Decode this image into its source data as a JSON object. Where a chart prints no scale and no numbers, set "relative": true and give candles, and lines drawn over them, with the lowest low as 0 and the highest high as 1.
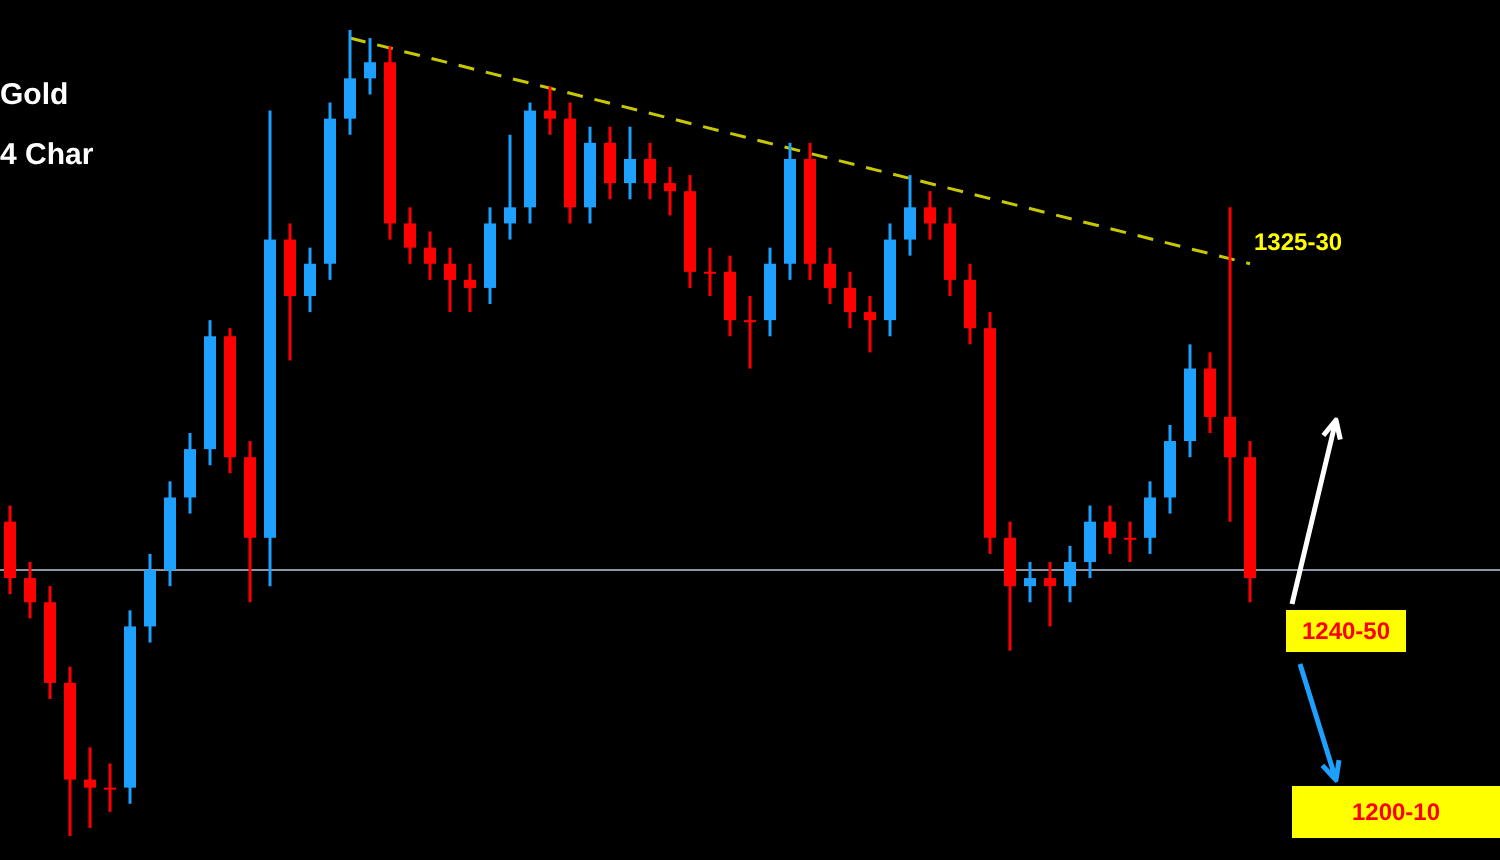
{
  "chart_data": {
    "type": "candlestick",
    "title": "Gold",
    "subtitle": "4 Char",
    "relative": true,
    "categories": [
      null,
      null,
      null,
      null,
      null,
      null,
      null,
      null,
      null,
      null,
      null,
      null,
      null,
      null,
      null,
      null,
      null,
      null,
      null,
      null,
      null,
      null,
      null,
      null,
      null,
      null,
      null,
      null,
      null,
      null,
      null,
      null,
      null,
      null,
      null,
      null,
      null,
      null,
      null,
      null,
      null,
      null,
      null,
      null,
      null,
      null,
      null,
      null,
      null,
      null,
      null,
      null,
      null,
      null,
      null,
      null,
      null,
      null,
      null,
      null,
      null,
      null,
      null
    ],
    "ohlc": [
      [
        0.39,
        0.41,
        0.3,
        0.32
      ],
      [
        0.32,
        0.34,
        0.27,
        0.29
      ],
      [
        0.29,
        0.31,
        0.17,
        0.19
      ],
      [
        0.19,
        0.21,
        0,
        0.07
      ],
      [
        0.07,
        0.11,
        0.01,
        0.06
      ],
      [
        0.06,
        0.09,
        0.03,
        0.06
      ],
      [
        0.06,
        0.28,
        0.04,
        0.26
      ],
      [
        0.26,
        0.35,
        0.24,
        0.33
      ],
      [
        0.33,
        0.44,
        0.31,
        0.42
      ],
      [
        0.42,
        0.5,
        0.4,
        0.48
      ],
      [
        0.48,
        0.64,
        0.46,
        0.62
      ],
      [
        0.62,
        0.63,
        0.45,
        0.47
      ],
      [
        0.47,
        0.49,
        0.29,
        0.37
      ],
      [
        0.37,
        0.9,
        0.31,
        0.74
      ],
      [
        0.74,
        0.76,
        0.59,
        0.67
      ],
      [
        0.67,
        0.73,
        0.65,
        0.71
      ],
      [
        0.71,
        0.91,
        0.69,
        0.89
      ],
      [
        0.89,
        1,
        0.87,
        0.94
      ],
      [
        0.94,
        0.99,
        0.92,
        0.96
      ],
      [
        0.96,
        0.98,
        0.74,
        0.76
      ],
      [
        0.76,
        0.78,
        0.71,
        0.73
      ],
      [
        0.73,
        0.75,
        0.69,
        0.71
      ],
      [
        0.71,
        0.73,
        0.65,
        0.69
      ],
      [
        0.69,
        0.71,
        0.65,
        0.68
      ],
      [
        0.68,
        0.78,
        0.66,
        0.76
      ],
      [
        0.76,
        0.87,
        0.74,
        0.78
      ],
      [
        0.78,
        0.91,
        0.76,
        0.9
      ],
      [
        0.9,
        0.93,
        0.87,
        0.89
      ],
      [
        0.89,
        0.91,
        0.76,
        0.78
      ],
      [
        0.78,
        0.88,
        0.76,
        0.86
      ],
      [
        0.86,
        0.88,
        0.79,
        0.81
      ],
      [
        0.81,
        0.88,
        0.79,
        0.84
      ],
      [
        0.84,
        0.86,
        0.79,
        0.81
      ],
      [
        0.81,
        0.83,
        0.77,
        0.8
      ],
      [
        0.8,
        0.82,
        0.68,
        0.7
      ],
      [
        0.7,
        0.73,
        0.67,
        0.7
      ],
      [
        0.7,
        0.72,
        0.62,
        0.64
      ],
      [
        0.64,
        0.67,
        0.58,
        0.64
      ],
      [
        0.64,
        0.73,
        0.62,
        0.71
      ],
      [
        0.71,
        0.86,
        0.69,
        0.84
      ],
      [
        0.84,
        0.86,
        0.69,
        0.71
      ],
      [
        0.71,
        0.73,
        0.66,
        0.68
      ],
      [
        0.68,
        0.7,
        0.63,
        0.65
      ],
      [
        0.65,
        0.67,
        0.6,
        0.64
      ],
      [
        0.64,
        0.76,
        0.62,
        0.74
      ],
      [
        0.74,
        0.82,
        0.72,
        0.78
      ],
      [
        0.78,
        0.8,
        0.74,
        0.76
      ],
      [
        0.76,
        0.78,
        0.67,
        0.69
      ],
      [
        0.69,
        0.71,
        0.61,
        0.63
      ],
      [
        0.63,
        0.65,
        0.35,
        0.37
      ],
      [
        0.37,
        0.39,
        0.23,
        0.31
      ],
      [
        0.31,
        0.34,
        0.29,
        0.32
      ],
      [
        0.32,
        0.34,
        0.26,
        0.31
      ],
      [
        0.31,
        0.36,
        0.29,
        0.34
      ],
      [
        0.34,
        0.41,
        0.32,
        0.39
      ],
      [
        0.39,
        0.41,
        0.35,
        0.37
      ],
      [
        0.37,
        0.39,
        0.34,
        0.37
      ],
      [
        0.37,
        0.44,
        0.35,
        0.42
      ],
      [
        0.42,
        0.51,
        0.4,
        0.49
      ],
      [
        0.49,
        0.61,
        0.47,
        0.58
      ],
      [
        0.58,
        0.6,
        0.5,
        0.52
      ],
      [
        0.52,
        0.78,
        0.39,
        0.47
      ],
      [
        0.47,
        0.49,
        0.29,
        0.32
      ]
    ],
    "colors": [
      "#ff0000",
      "#ff0000",
      "#ff0000",
      "#ff0000",
      "#ff0000",
      "#ff0000",
      "#1ea0ff",
      "#1ea0ff",
      "#1ea0ff",
      "#1ea0ff",
      "#1ea0ff",
      "#ff0000",
      "#ff0000",
      "#1ea0ff",
      "#ff0000",
      "#1ea0ff",
      "#1ea0ff",
      "#1ea0ff",
      "#1ea0ff",
      "#ff0000",
      "#ff0000",
      "#ff0000",
      "#ff0000",
      "#ff0000",
      "#1ea0ff",
      "#1ea0ff",
      "#1ea0ff",
      "#ff0000",
      "#ff0000",
      "#1ea0ff",
      "#ff0000",
      "#1ea0ff",
      "#ff0000",
      "#ff0000",
      "#ff0000",
      "#ff0000",
      "#ff0000",
      "#ff0000",
      "#1ea0ff",
      "#1ea0ff",
      "#ff0000",
      "#ff0000",
      "#ff0000",
      "#ff0000",
      "#1ea0ff",
      "#1ea0ff",
      "#ff0000",
      "#ff0000",
      "#ff0000",
      "#ff0000",
      "#ff0000",
      "#1ea0ff",
      "#ff0000",
      "#1ea0ff",
      "#1ea0ff",
      "#ff0000",
      "#ff0000",
      "#1ea0ff",
      "#1ea0ff",
      "#1ea0ff",
      "#ff0000",
      "#ff0000",
      "#ff0000"
    ],
    "series": [
      {
        "type": "line",
        "color": "#c8c800",
        "line_style": "dashed",
        "values": [
          null,
          null,
          null,
          null,
          null,
          null,
          null,
          null,
          null,
          null,
          null,
          null,
          null,
          null,
          null,
          null,
          null,
          0.99,
          null,
          null,
          null,
          null,
          null,
          null,
          null,
          null,
          null,
          null,
          null,
          null,
          null,
          null,
          null,
          null,
          null,
          null,
          null,
          null,
          null,
          null,
          null,
          null,
          null,
          null,
          null,
          null,
          null,
          null,
          null,
          null,
          null,
          null,
          null,
          null,
          null,
          null,
          null,
          null,
          null,
          null,
          null,
          null,
          0.71
        ]
      }
    ],
    "ref_lines": [
      {
        "axis": "y",
        "value": 0.33,
        "color": "#8a96a8"
      }
    ],
    "annotations": [
      "1325-30",
      "1240-50",
      "1200-10"
    ]
  }
}
